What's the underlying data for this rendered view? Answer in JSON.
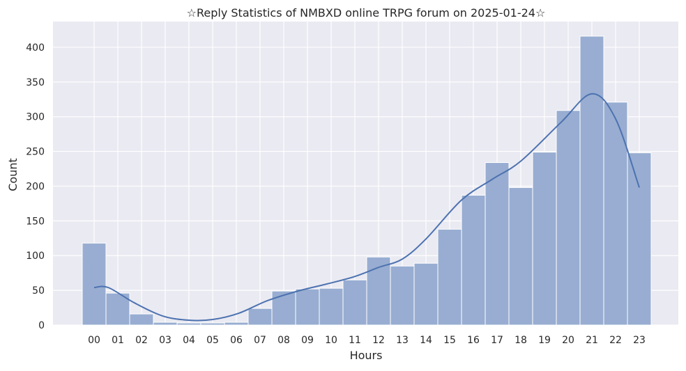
{
  "chart_data": {
    "type": "bar",
    "title": "☆Reply Statistics of NMBXD online TRPG forum on 2025-01-24☆",
    "xlabel": "Hours",
    "ylabel": "Count",
    "categories": [
      "00",
      "01",
      "02",
      "03",
      "04",
      "05",
      "06",
      "07",
      "08",
      "09",
      "10",
      "11",
      "12",
      "13",
      "14",
      "15",
      "16",
      "17",
      "18",
      "19",
      "20",
      "21",
      "22",
      "23"
    ],
    "values": [
      118,
      46,
      16,
      4,
      3,
      3,
      4,
      24,
      49,
      52,
      53,
      65,
      98,
      85,
      89,
      138,
      187,
      234,
      198,
      249,
      309,
      416,
      321,
      248
    ],
    "kde": [
      54,
      54,
      32,
      13,
      7,
      8,
      17,
      35,
      49,
      59,
      70,
      83,
      95,
      124,
      180,
      210,
      236,
      292,
      333,
      297,
      198
    ],
    "kde_x": [
      0,
      0.6,
      1.7,
      2.9,
      4.0,
      5.0,
      6.1,
      7.3,
      8.6,
      9.8,
      11.0,
      12.0,
      13.0,
      14.0,
      15.5,
      16.8,
      18.0,
      19.7,
      21.0,
      22.0,
      23.0
    ],
    "ylim": [
      0,
      437
    ],
    "yticks": [
      0,
      50,
      100,
      150,
      200,
      250,
      300,
      350,
      400
    ],
    "grid": true,
    "style": "seaborn-darkgrid",
    "colors": {
      "background": "#EAEAF2",
      "bar_fill": "#98ADD1",
      "bar_edge": "#FFFFFF",
      "kde_line": "#4C72B0",
      "grid": "#FFFFFF"
    }
  }
}
